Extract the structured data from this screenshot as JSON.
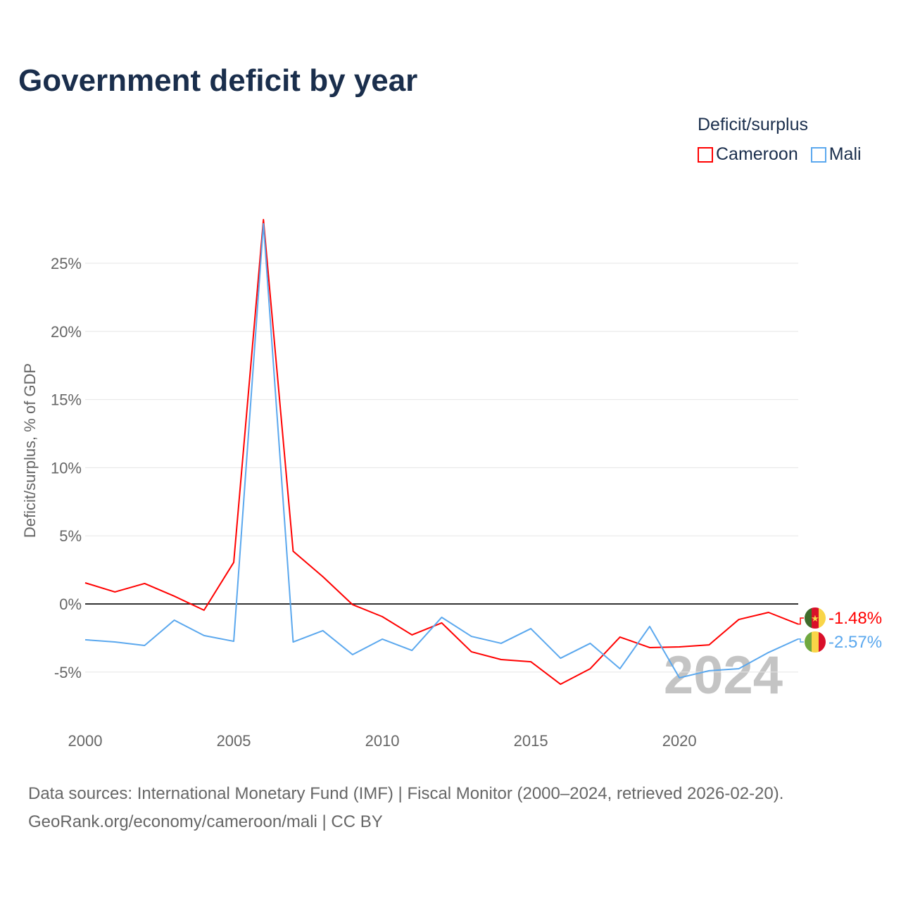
{
  "title": "Government deficit by year",
  "legend": {
    "title": "Deficit/surplus",
    "items": [
      {
        "label": "Cameroon",
        "color": "#ff0000"
      },
      {
        "label": "Mali",
        "color": "#5ba8ee"
      }
    ]
  },
  "watermark_year": "2024",
  "source": {
    "line1": "Data sources: International Monetary Fund (IMF) | Fiscal Monitor (2000–2024, retrieved 2026-02-20).",
    "line2": "GeoRank.org/economy/cameroon/mali | CC BY"
  },
  "chart_data": {
    "type": "line",
    "title": "Government deficit by year",
    "xlabel": "",
    "ylabel": "Deficit/surplus, % of GDP",
    "xlim": [
      2000,
      2024
    ],
    "ylim": [
      -8,
      30
    ],
    "x_ticks": [
      2000,
      2005,
      2010,
      2015,
      2020
    ],
    "y_ticks": [
      -5,
      0,
      5,
      10,
      15,
      20,
      25
    ],
    "y_tick_labels": [
      "-5%",
      "0%",
      "5%",
      "10%",
      "15%",
      "20%",
      "25%"
    ],
    "x": [
      2000,
      2001,
      2002,
      2003,
      2004,
      2005,
      2006,
      2007,
      2008,
      2009,
      2010,
      2011,
      2012,
      2013,
      2014,
      2015,
      2016,
      2017,
      2018,
      2019,
      2020,
      2021,
      2022,
      2023,
      2024
    ],
    "series": [
      {
        "name": "Cameroon",
        "color": "#ff0000",
        "end_label": "-1.48%",
        "values": [
          1.55,
          0.88,
          1.5,
          0.57,
          -0.46,
          3.05,
          28.2,
          3.87,
          2.0,
          -0.05,
          -0.93,
          -2.27,
          -1.39,
          -3.51,
          -4.08,
          -4.24,
          -5.89,
          -4.75,
          -2.43,
          -3.2,
          -3.15,
          -3.0,
          -1.14,
          -0.62,
          -1.48
        ]
      },
      {
        "name": "Mali",
        "color": "#5ba8ee",
        "end_label": "-2.57%",
        "values": [
          -2.63,
          -2.79,
          -3.05,
          -1.19,
          -2.32,
          -2.74,
          27.9,
          -2.79,
          -1.96,
          -3.72,
          -2.58,
          -3.41,
          -0.98,
          -2.38,
          -2.89,
          -1.81,
          -3.98,
          -2.89,
          -4.75,
          -1.65,
          -5.42,
          -4.9,
          -4.75,
          -3.56,
          -2.57
        ]
      }
    ]
  }
}
